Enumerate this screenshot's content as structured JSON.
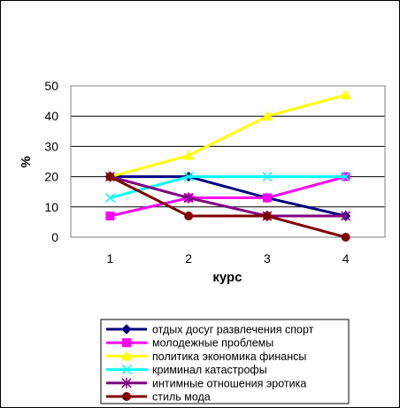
{
  "chart_data": {
    "type": "line",
    "xlabel": "курс",
    "ylabel": "%",
    "ylim": [
      0,
      50
    ],
    "yticks": [
      0,
      10,
      20,
      30,
      40,
      50
    ],
    "categories": [
      "1",
      "2",
      "3",
      "4"
    ],
    "grid": "horizontal",
    "legend_position": "bottom",
    "series": [
      {
        "name": "отдых досуг развлечения спорт",
        "values": [
          20,
          20,
          13,
          7
        ],
        "color": "#000080",
        "marker": "diamond"
      },
      {
        "name": "молодежные проблемы",
        "values": [
          7,
          13,
          13,
          20
        ],
        "color": "#ff00ff",
        "marker": "square"
      },
      {
        "name": "политика экономика финансы",
        "values": [
          20,
          27,
          40,
          47
        ],
        "color": "#ffff00",
        "marker": "triangle"
      },
      {
        "name": "криминал катастрофы",
        "values": [
          13,
          20,
          20,
          20
        ],
        "color": "#00ffff",
        "marker": "x"
      },
      {
        "name": "интимные отношения эротика",
        "values": [
          20,
          13,
          7,
          7
        ],
        "color": "#800080",
        "marker": "star"
      },
      {
        "name": "стиль мода",
        "values": [
          20,
          7,
          7,
          0
        ],
        "color": "#800000",
        "marker": "circle"
      }
    ]
  }
}
